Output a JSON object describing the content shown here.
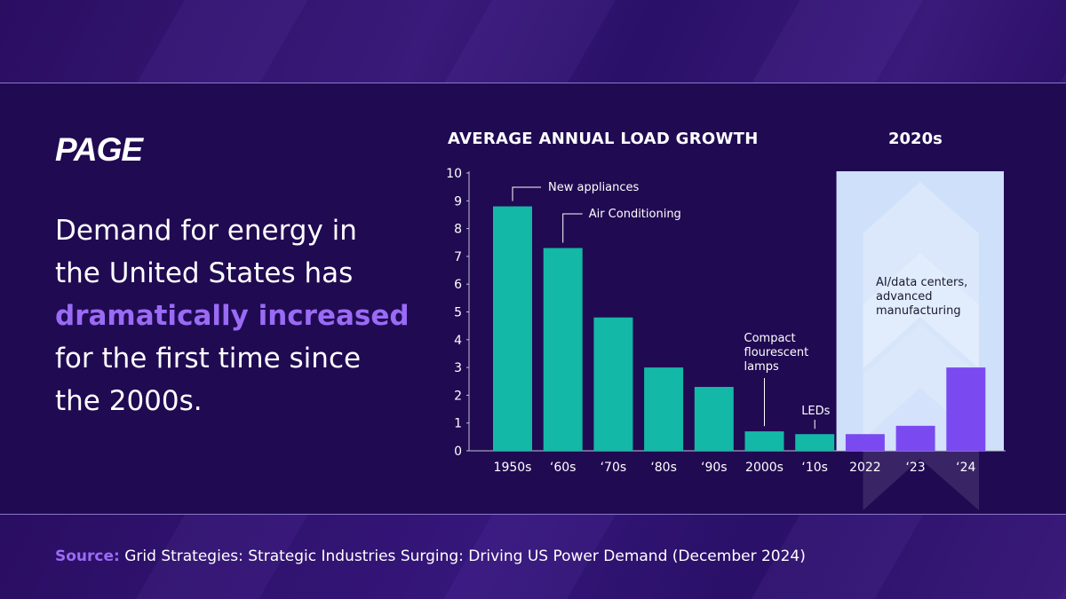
{
  "brand": {
    "logo_text": "PAGE"
  },
  "headline": {
    "part1": "Demand for energy in the United States has ",
    "highlight": "dramatically increased",
    "part2": " for the first time since the 2000s."
  },
  "source": {
    "label": "Source:",
    "text": " Grid Strategies: Strategic Industries Surging: Driving US Power Demand (December 2024)"
  },
  "chart_data": {
    "type": "bar",
    "title": "AVERAGE ANNUAL LOAD GROWTH",
    "highlight_period_label": "2020s",
    "categories": [
      "1950s",
      "‘60s",
      "‘70s",
      "‘80s",
      "‘90s",
      "2000s",
      "‘10s",
      "2022",
      "‘23",
      "‘24"
    ],
    "values": [
      8.8,
      7.3,
      4.8,
      3.0,
      2.3,
      0.7,
      0.6,
      0.6,
      0.9,
      3.0
    ],
    "highlighted_categories": [
      "2022",
      "‘23",
      "‘24"
    ],
    "yticks": [
      0,
      1,
      2,
      3,
      4,
      5,
      6,
      7,
      8,
      9,
      10
    ],
    "ylim": [
      0,
      10
    ],
    "xlabel": "",
    "ylabel": "",
    "grid": false,
    "colors": {
      "base": "#14b8a6",
      "highlight": "#7a4af0",
      "highlight_panel": "#cfe0fb",
      "axis": "#bfc3d6"
    },
    "annotations": [
      {
        "category": "1950s",
        "lines": [
          "New appliances"
        ]
      },
      {
        "category": "‘60s",
        "lines": [
          "Air Conditioning"
        ]
      },
      {
        "category": "2000s",
        "lines": [
          "Compact",
          "flourescent",
          "lamps"
        ]
      },
      {
        "category": "‘10s",
        "lines": [
          "LEDs"
        ]
      },
      {
        "category": "‘23",
        "lines": [
          "AI/data centers,",
          "advanced",
          "manufacturing"
        ]
      }
    ]
  }
}
